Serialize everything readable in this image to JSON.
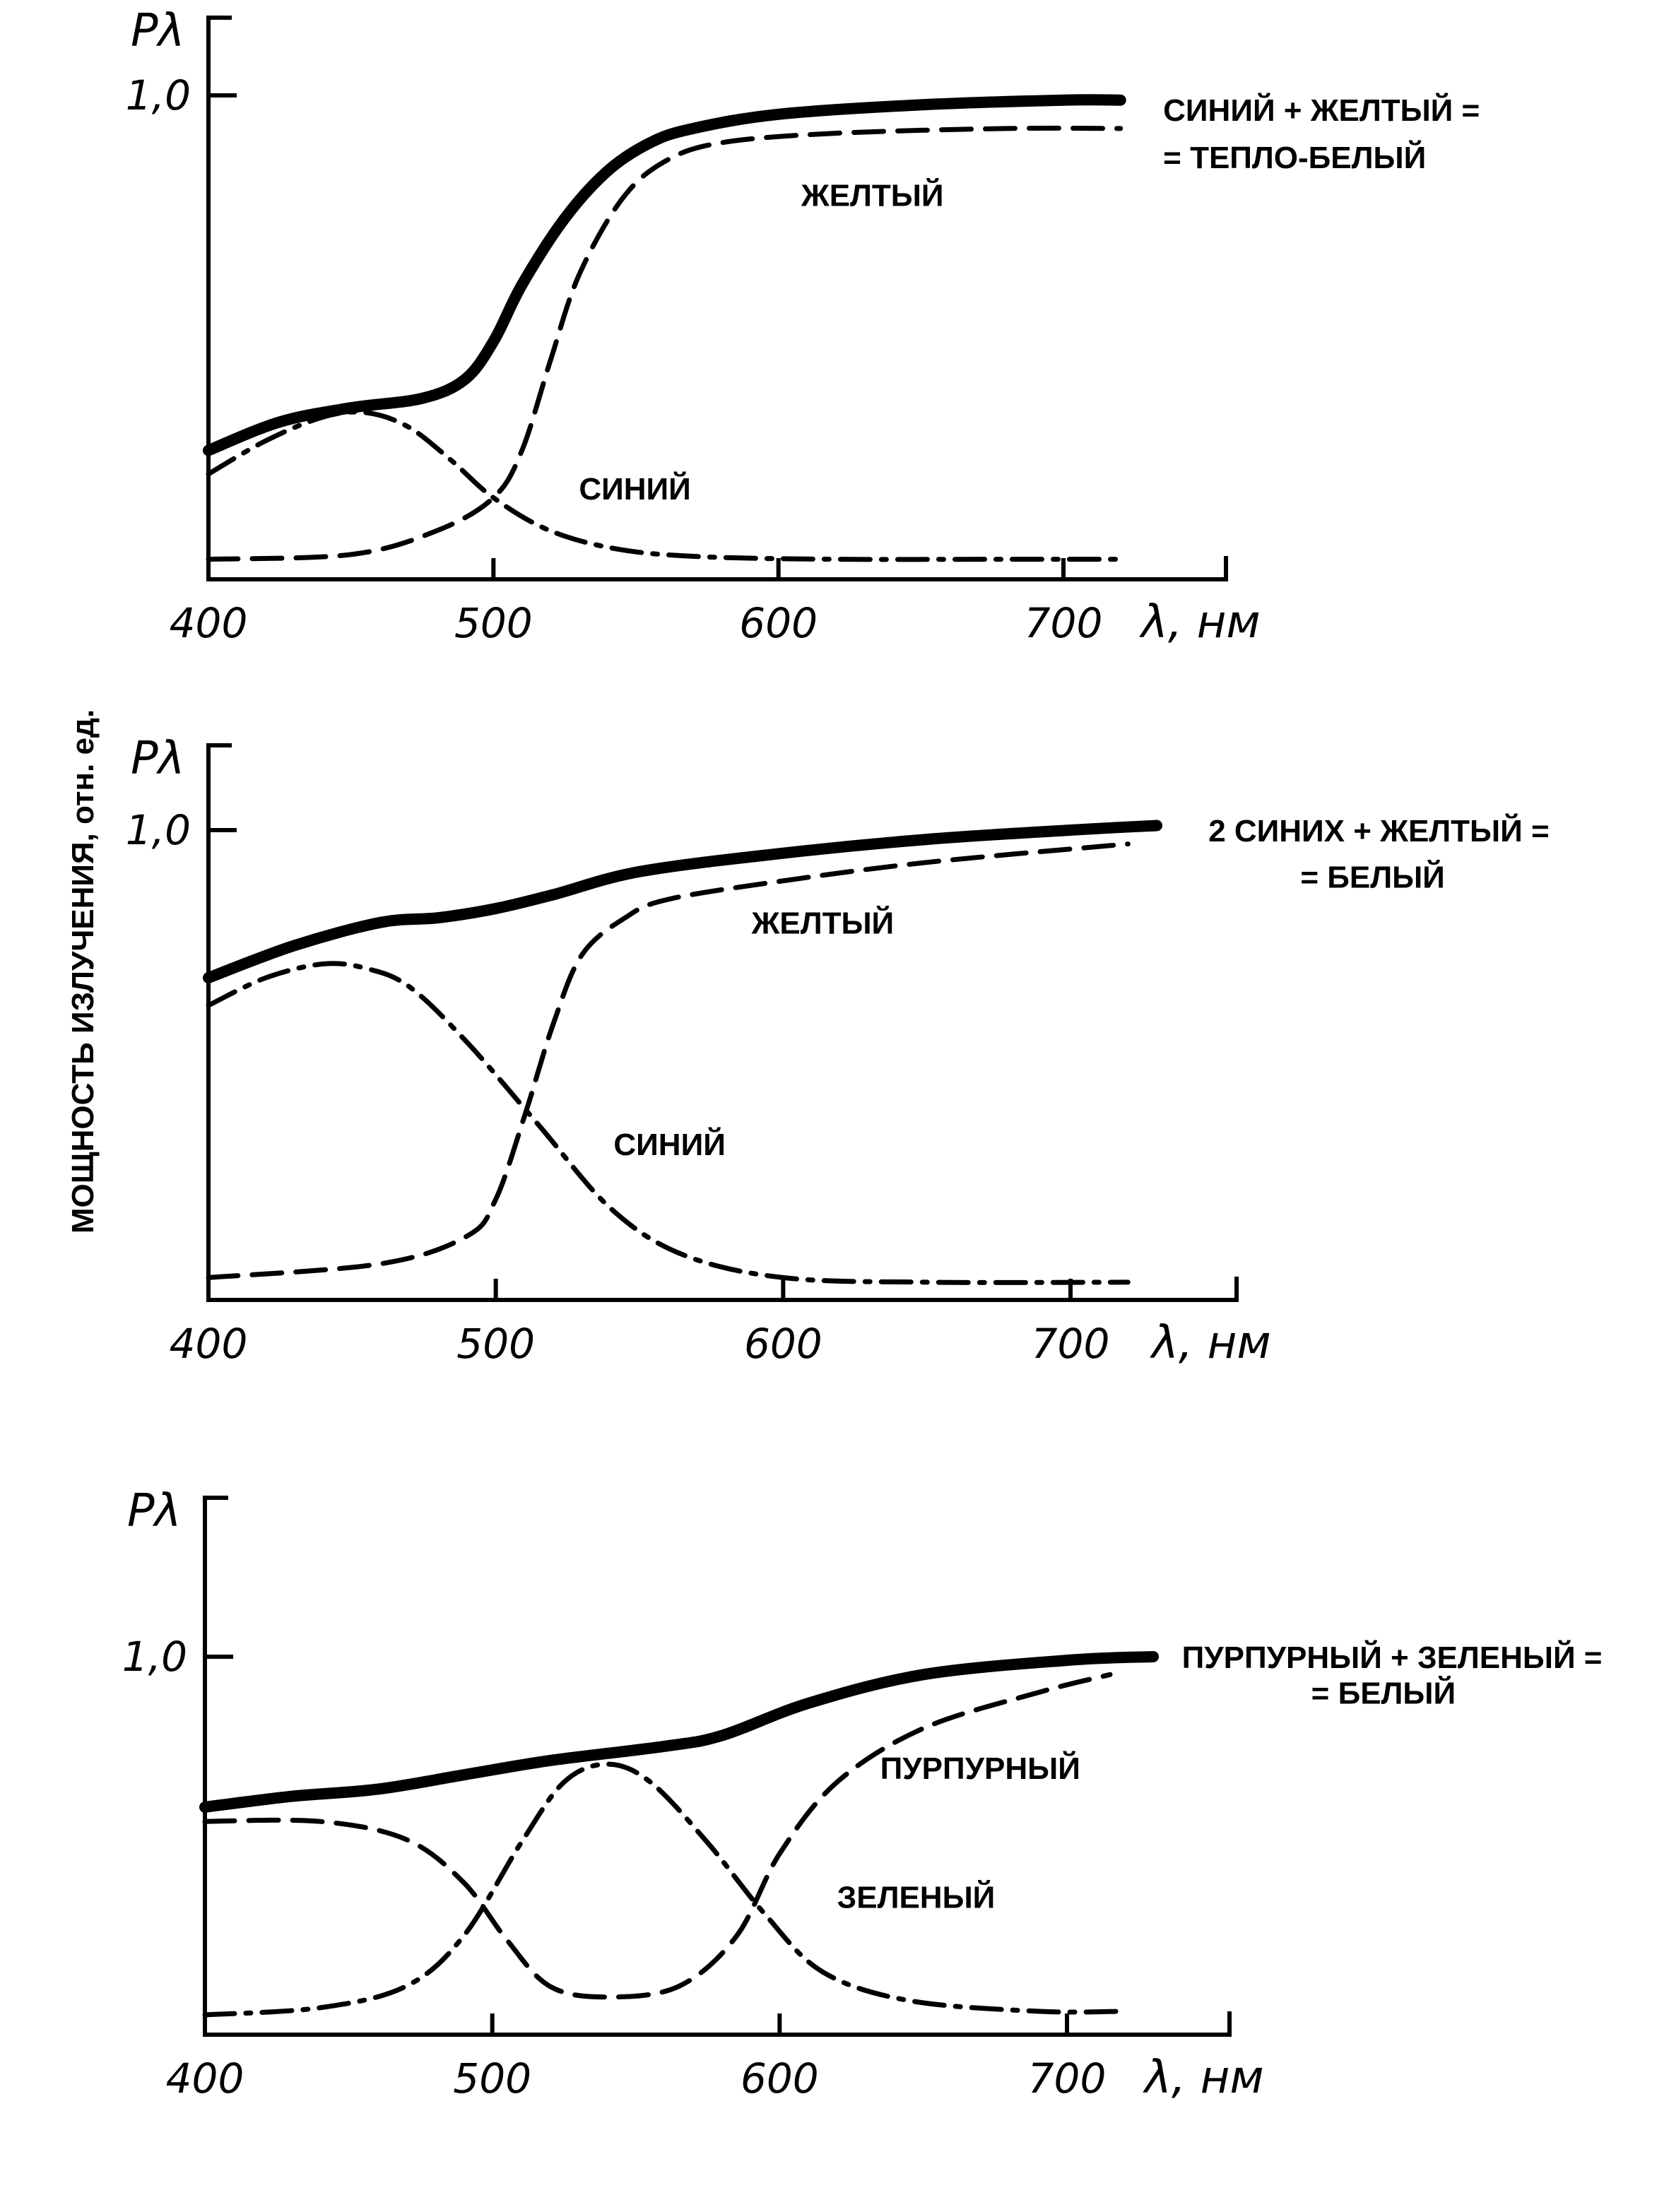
{
  "y_axis_title": "МОЩНОСТЬ ИЗЛУЧЕНИЯ, отн. ед.",
  "chart_data": [
    {
      "type": "line",
      "ylabel": "Pλ",
      "xlabel": "λ, нм",
      "x_ticks": [
        400,
        500,
        600,
        700
      ],
      "y_ticks": [
        {
          "value": 1.0,
          "label": "1,0"
        }
      ],
      "xlim": [
        400,
        760
      ],
      "ylim": [
        0,
        1.15
      ],
      "grid": false,
      "annotations": [
        {
          "text": "СИНИЙ + ЖЕЛТЫЙ =",
          "x": 735,
          "y": 0.97
        },
        {
          "text": "= ТЕПЛО-БЕЛЫЙ",
          "x": 735,
          "y": 0.87
        },
        {
          "text": "ЖЕЛТЫЙ",
          "x": 608,
          "y": 0.79
        },
        {
          "text": "СИНИЙ",
          "x": 530,
          "y": 0.17
        }
      ],
      "series": [
        {
          "name": "",
          "style": "solid-thick",
          "x": [
            400,
            425,
            450,
            475,
            490,
            500,
            510,
            525,
            540,
            555,
            570,
            600,
            650,
            700,
            720
          ],
          "y": [
            0.25,
            0.31,
            0.34,
            0.36,
            0.4,
            0.48,
            0.6,
            0.74,
            0.84,
            0.9,
            0.93,
            0.96,
            0.98,
            0.99,
            0.99
          ]
        },
        {
          "name": "ЖЕЛТЫЙ",
          "style": "dashed",
          "x": [
            400,
            450,
            480,
            500,
            510,
            520,
            530,
            545,
            560,
            580,
            620,
            680,
            720
          ],
          "y": [
            0.02,
            0.03,
            0.08,
            0.15,
            0.25,
            0.44,
            0.62,
            0.78,
            0.86,
            0.9,
            0.92,
            0.93,
            0.93
          ]
        },
        {
          "name": "СИНИЙ",
          "style": "dash-dot",
          "x": [
            400,
            420,
            440,
            455,
            470,
            485,
            500,
            520,
            545,
            575,
            620,
            680,
            720
          ],
          "y": [
            0.2,
            0.27,
            0.32,
            0.33,
            0.3,
            0.23,
            0.15,
            0.08,
            0.04,
            0.025,
            0.02,
            0.02,
            0.02
          ]
        }
      ]
    },
    {
      "type": "line",
      "ylabel": "Pλ",
      "xlabel": "λ, нм",
      "x_ticks": [
        400,
        500,
        600,
        700
      ],
      "y_ticks": [
        {
          "value": 1.0,
          "label": "1,0"
        }
      ],
      "xlim": [
        400,
        760
      ],
      "ylim": [
        0,
        1.15
      ],
      "grid": false,
      "annotations": [
        {
          "text": "2 СИНИХ + ЖЕЛТЫЙ =",
          "x": 748,
          "y": 1.0
        },
        {
          "text": "= БЕЛЫЙ",
          "x": 780,
          "y": 0.9
        },
        {
          "text": "ЖЕЛТЫЙ",
          "x": 589,
          "y": 0.8
        },
        {
          "text": "СИНИЙ",
          "x": 541,
          "y": 0.32
        }
      ],
      "series": [
        {
          "name": "",
          "style": "solid-thick",
          "x": [
            400,
            430,
            460,
            480,
            500,
            520,
            550,
            600,
            650,
            700,
            730
          ],
          "y": [
            0.68,
            0.75,
            0.8,
            0.81,
            0.83,
            0.86,
            0.91,
            0.95,
            0.98,
            1.0,
            1.01
          ]
        },
        {
          "name": "ЖЕЛТЫЙ",
          "style": "dashed",
          "x": [
            400,
            460,
            490,
            500,
            510,
            520,
            530,
            545,
            560,
            600,
            650,
            720
          ],
          "y": [
            0.03,
            0.06,
            0.12,
            0.2,
            0.38,
            0.58,
            0.73,
            0.81,
            0.85,
            0.89,
            0.93,
            0.97
          ]
        },
        {
          "name": "СИНИЙ",
          "style": "dash-dot",
          "x": [
            400,
            420,
            440,
            455,
            470,
            490,
            515,
            540,
            565,
            600,
            650,
            720
          ],
          "y": [
            0.62,
            0.68,
            0.71,
            0.7,
            0.66,
            0.54,
            0.36,
            0.18,
            0.08,
            0.03,
            0.02,
            0.02
          ]
        }
      ]
    },
    {
      "type": "line",
      "ylabel": "Pλ",
      "xlabel": "λ, нм",
      "x_ticks": [
        400,
        500,
        600,
        700
      ],
      "y_ticks": [
        {
          "value": 1.0,
          "label": "1,0"
        }
      ],
      "xlim": [
        400,
        760
      ],
      "ylim": [
        0,
        1.4
      ],
      "grid": false,
      "annotations": [
        {
          "text": "ПУРПУРНЫЙ + ЗЕЛЕНЫЙ =",
          "x": 740,
          "y": 1.0
        },
        {
          "text": "= БЕЛЫЙ",
          "x": 785,
          "y": 0.9
        },
        {
          "text": "ПУРПУРНЫЙ",
          "x": 635,
          "y": 0.69
        },
        {
          "text": "ЗЕЛЕНЫЙ",
          "x": 620,
          "y": 0.33
        }
      ],
      "series": [
        {
          "name": "",
          "style": "solid-thick",
          "x": [
            400,
            430,
            460,
            490,
            520,
            560,
            580,
            610,
            650,
            700,
            730
          ],
          "y": [
            0.58,
            0.61,
            0.63,
            0.67,
            0.71,
            0.75,
            0.78,
            0.87,
            0.95,
            0.99,
            1.0
          ]
        },
        {
          "name": "ПУРПУРНЫЙ",
          "style": "dashed",
          "x": [
            400,
            440,
            470,
            490,
            505,
            520,
            540,
            565,
            585,
            600,
            620,
            650,
            690,
            715
          ],
          "y": [
            0.54,
            0.54,
            0.49,
            0.37,
            0.21,
            0.08,
            0.05,
            0.08,
            0.22,
            0.45,
            0.65,
            0.8,
            0.9,
            0.95
          ]
        },
        {
          "name": "ЗЕЛЕНЫЙ",
          "style": "dash-dot",
          "x": [
            400,
            440,
            470,
            490,
            510,
            525,
            540,
            555,
            575,
            595,
            615,
            645,
            690,
            720
          ],
          "y": [
            0.0,
            0.02,
            0.08,
            0.22,
            0.48,
            0.65,
            0.7,
            0.65,
            0.48,
            0.28,
            0.12,
            0.04,
            0.01,
            0.01
          ]
        }
      ]
    }
  ]
}
